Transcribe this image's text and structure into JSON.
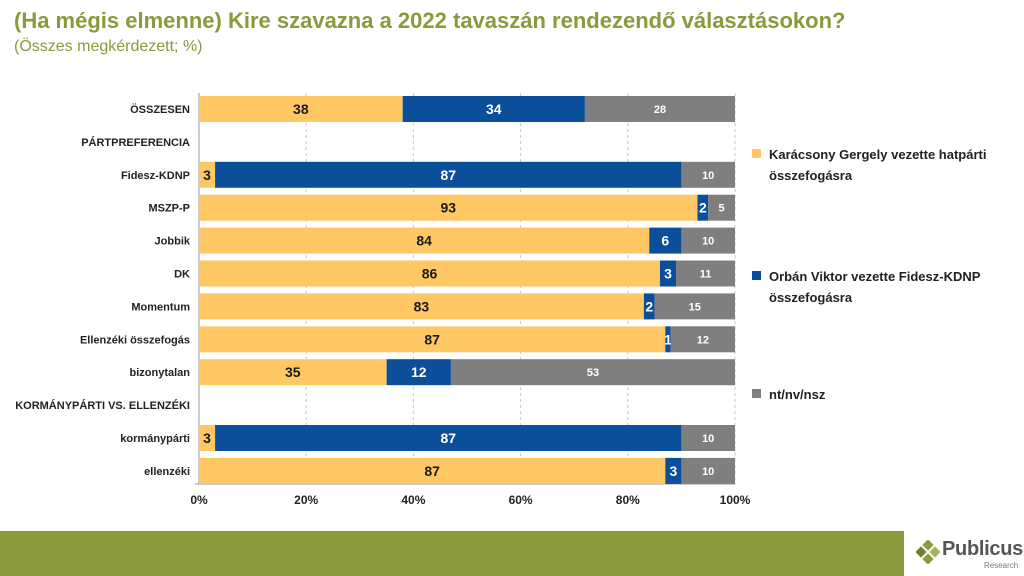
{
  "header": {
    "title": "(Ha mégis elmenne) Kire szavazna a 2022 tavaszán rendezendő választásokon?",
    "subtitle": "(Összes megkérdezett; %)"
  },
  "colors": {
    "opposition": "#ffc864",
    "fidesz": "#0b4f9a",
    "undecided": "#7f7f7f",
    "brand": "#8c9b3e"
  },
  "chart_data": {
    "type": "bar",
    "orientation": "horizontal",
    "stacked": true,
    "percent": true,
    "categories": [
      "ÖSSZESEN",
      "PÁRTPREFERENCIA",
      "Fidesz-KDNP",
      "MSZP-P",
      "Jobbik",
      "DK",
      "Momentum",
      "Ellenzéki összefogás",
      "bizonytalan",
      "KORMÁNYPÁRTI VS. ELLENZÉKI",
      "kormánypárti",
      "ellenzéki"
    ],
    "group_headers": [
      "PÁRTPREFERENCIA",
      "KORMÁNYPÁRTI VS. ELLENZÉKI"
    ],
    "series": [
      {
        "name": "Karácsony Gergely vezette hatpárti összefogásra",
        "color": "#ffc864",
        "values": [
          38,
          null,
          3,
          93,
          84,
          86,
          83,
          87,
          35,
          null,
          3,
          87
        ]
      },
      {
        "name": "Orbán Viktor vezette Fidesz-KDNP összefogásra",
        "color": "#0b4f9a",
        "values": [
          34,
          null,
          87,
          2,
          6,
          3,
          2,
          1,
          12,
          null,
          87,
          3
        ]
      },
      {
        "name": "nt/nv/nsz",
        "color": "#7f7f7f",
        "values": [
          28,
          null,
          10,
          5,
          10,
          11,
          15,
          12,
          53,
          null,
          10,
          10
        ]
      }
    ],
    "xlim": [
      0,
      100
    ],
    "xticks": [
      "0%",
      "20%",
      "40%",
      "60%",
      "80%",
      "100%"
    ],
    "grid": true,
    "legend_position": "right"
  },
  "legend": {
    "items": [
      {
        "label_line1": "Karácsony Gergely vezette hatpárti",
        "label_line2": "összefogásra"
      },
      {
        "label_line1": "Orbán Viktor vezette Fidesz-KDNP",
        "label_line2": "összefogásra"
      },
      {
        "label_line1": "nt/nv/nsz",
        "label_line2": ""
      }
    ]
  },
  "logo": {
    "name": "Publicus",
    "sub": "Research"
  }
}
